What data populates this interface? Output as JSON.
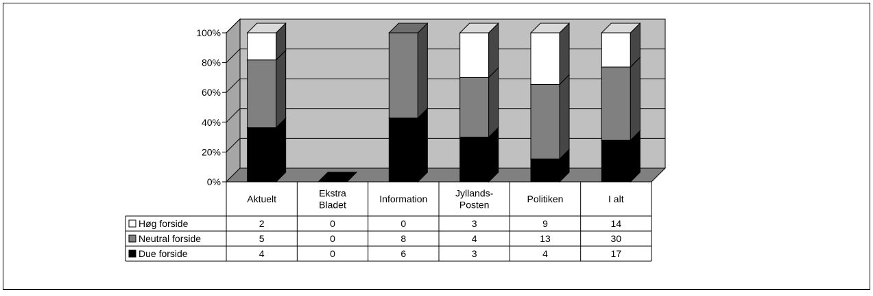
{
  "chart_data": {
    "type": "bar",
    "stacked": "percent",
    "three_d": true,
    "categories": [
      [
        "Aktuelt"
      ],
      [
        "Ekstra",
        "Bladet"
      ],
      [
        "Information"
      ],
      [
        "Jyllands-",
        "Posten"
      ],
      [
        "Politiken"
      ],
      [
        "I alt"
      ]
    ],
    "series": [
      {
        "name": "Høg forside",
        "values": [
          2,
          0,
          0,
          3,
          9,
          14
        ],
        "color": "#ffffff"
      },
      {
        "name": "Neutral forside",
        "values": [
          5,
          0,
          8,
          4,
          13,
          30
        ],
        "color": "#808080"
      },
      {
        "name": "Due forside",
        "values": [
          4,
          0,
          6,
          3,
          4,
          17
        ],
        "color": "#000000"
      }
    ],
    "stack_order_bottom_to_top": [
      "Due forside",
      "Neutral forside",
      "Høg forside"
    ],
    "y_tick_labels": [
      "0%",
      "20%",
      "40%",
      "60%",
      "80%",
      "100%"
    ],
    "ylim": [
      0,
      100
    ],
    "grid": true,
    "colors": {
      "wall": "#c0c0c0",
      "floor": "#808080",
      "gridline": "#000000"
    },
    "data_table": true
  }
}
